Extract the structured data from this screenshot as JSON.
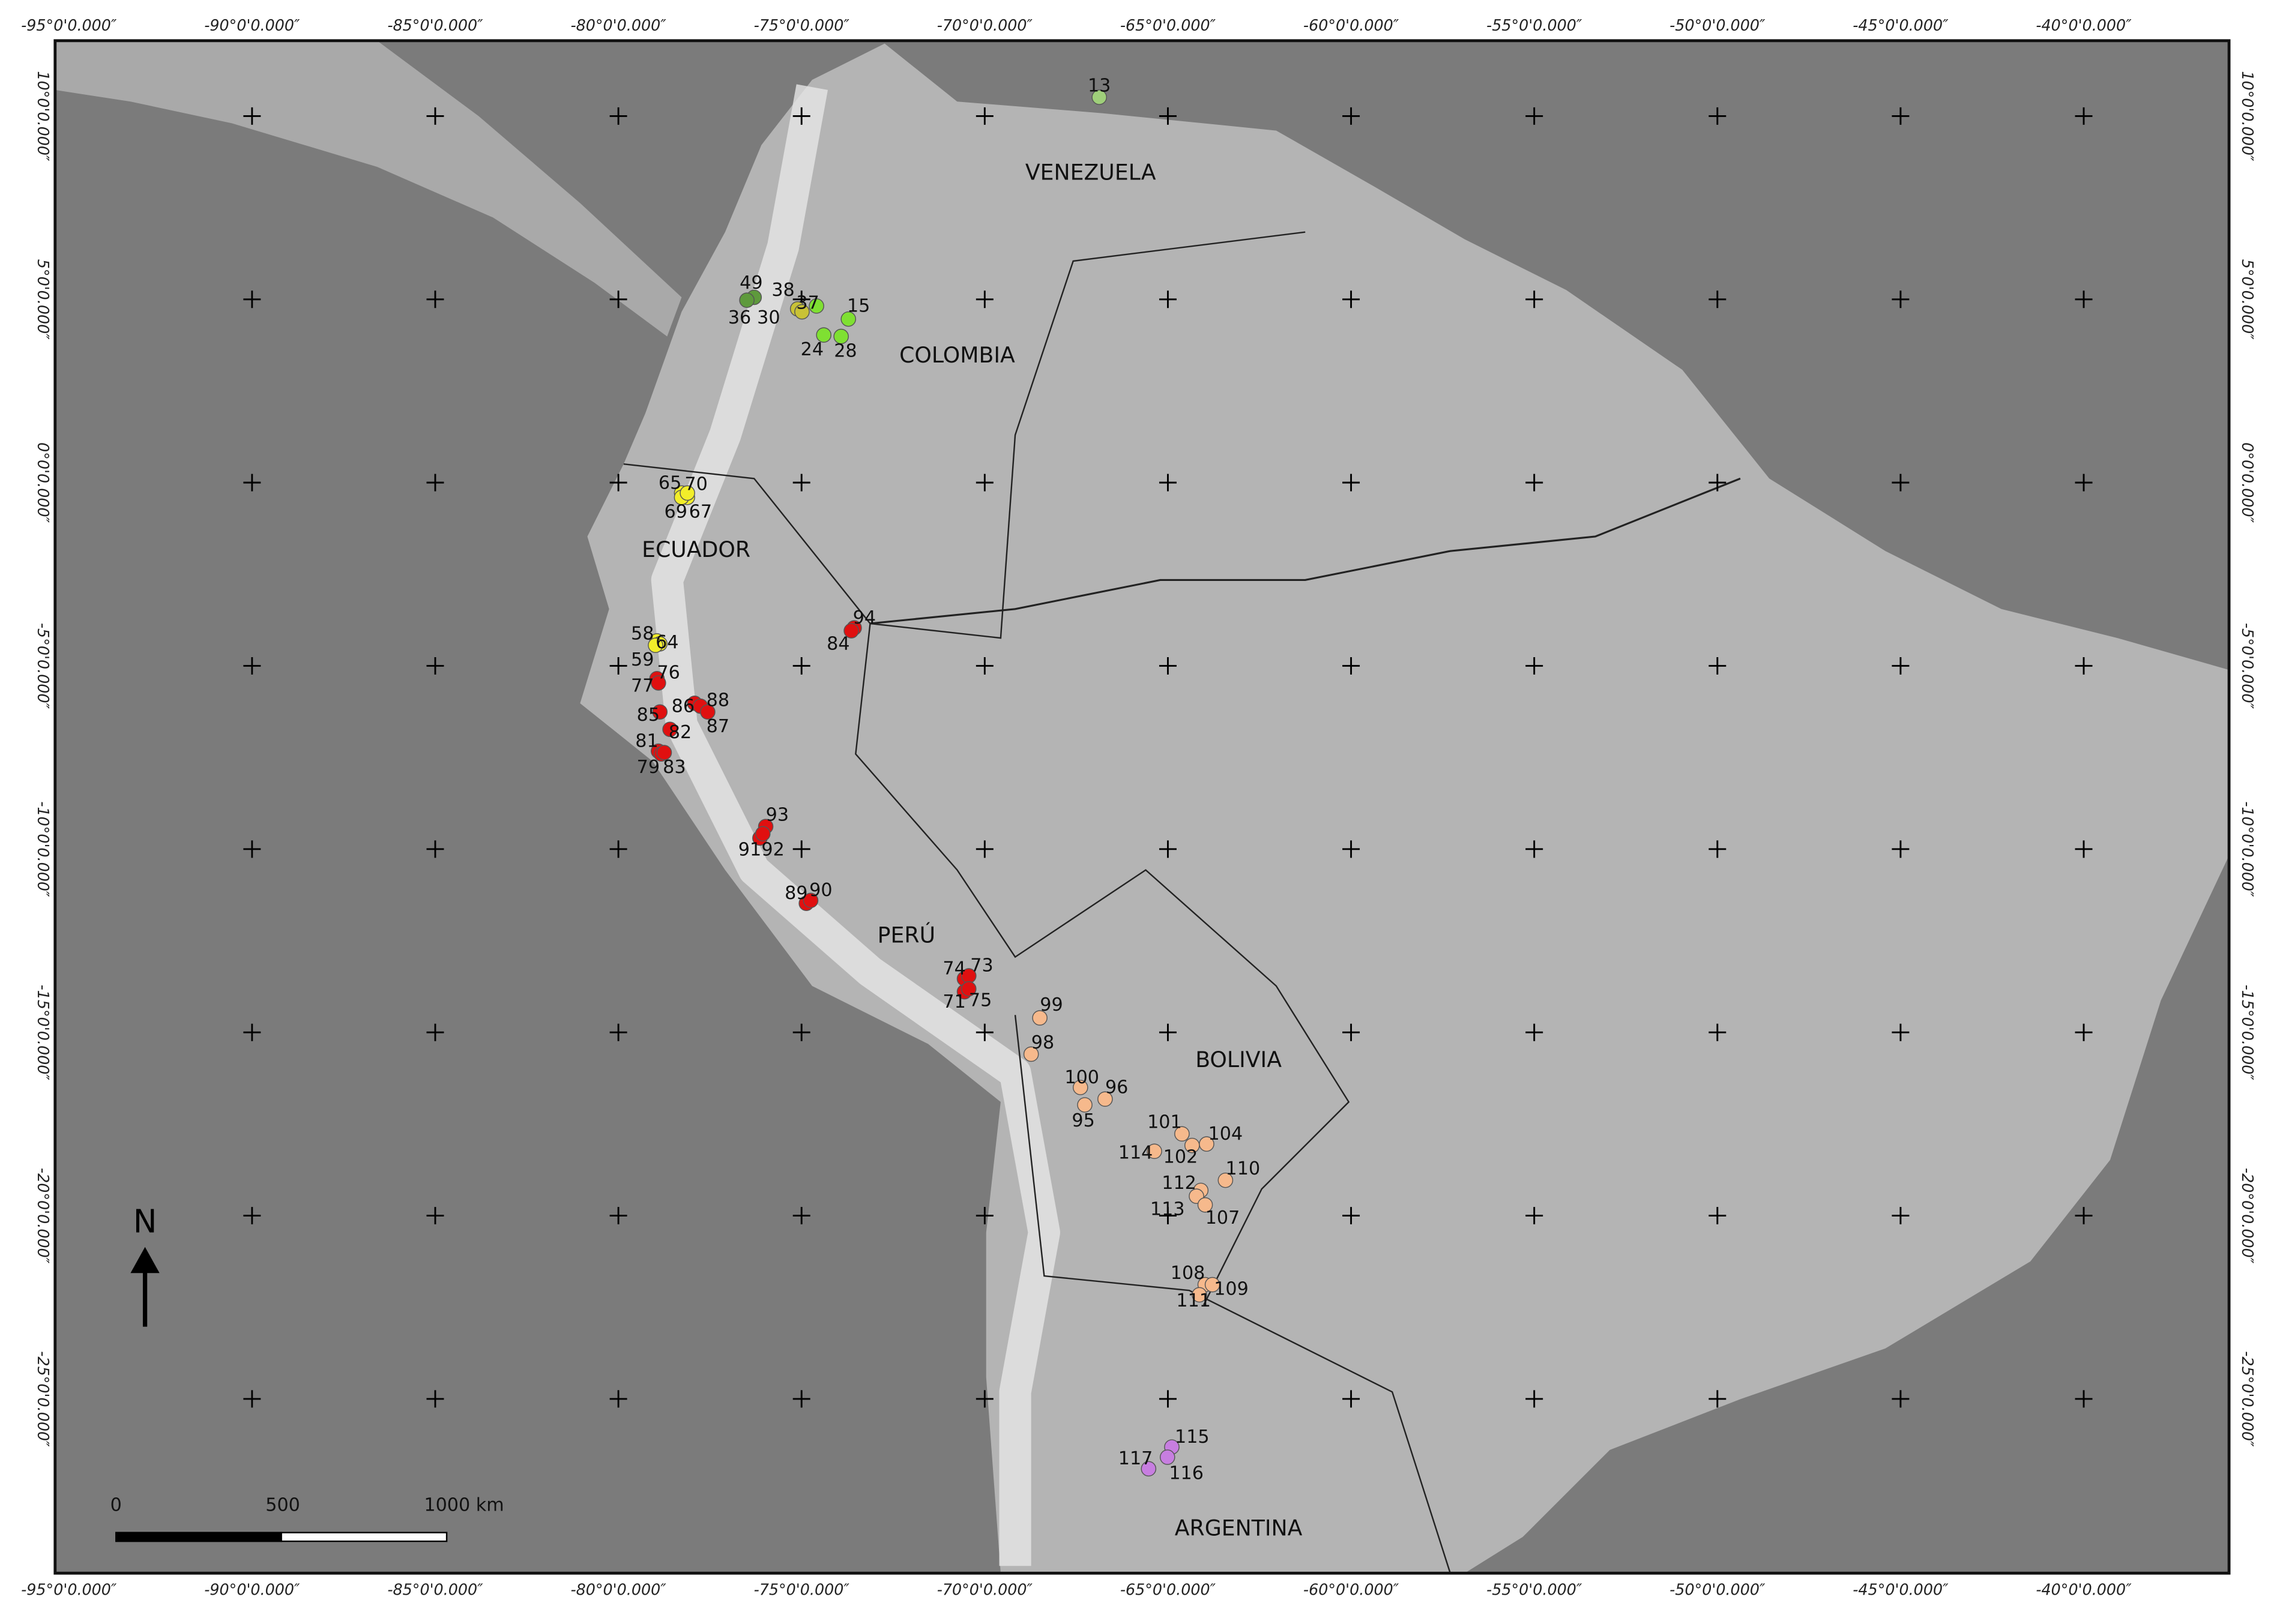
{
  "map": {
    "lon_labels": [
      "-95°0'0.000″",
      "-90°0'0.000″",
      "-85°0'0.000″",
      "-80°0'0.000″",
      "-75°0'0.000″",
      "-70°0'0.000″",
      "-65°0'0.000″",
      "-60°0'0.000″",
      "-55°0'0.000″",
      "-50°0'0.000″",
      "-45°0'0.000″",
      "-40°0'0.000″"
    ],
    "lat_labels": [
      "10°0'0.000″",
      "5°0'0.000″",
      "0°0'0.000″",
      "-5°0'0.000″",
      "-10°0'0.000″",
      "-15°0'0.000″",
      "-20°0'0.000″",
      "-25°0'0.000″"
    ],
    "countries": [
      "VENEZUELA",
      "COLOMBIA",
      "ECUADOR",
      "PERÚ",
      "BOLIVIA",
      "ARGENTINA"
    ],
    "north": "N",
    "scale_labels": [
      "0",
      "500",
      "1000 km"
    ],
    "points": [
      {
        "label": "13",
        "color": "#9fcf7a"
      },
      {
        "label": "49",
        "color": "#5e9a3c"
      },
      {
        "label": "38",
        "color": "#c9c236"
      },
      {
        "label": "36",
        "color": "#5e9a3c"
      },
      {
        "label": "30",
        "color": "#c9c236"
      },
      {
        "label": "37",
        "color": "#7fe032"
      },
      {
        "label": "15",
        "color": "#7fe032"
      },
      {
        "label": "24",
        "color": "#7fe032"
      },
      {
        "label": "28",
        "color": "#7fe032"
      },
      {
        "label": "65",
        "color": "#f2ee2a"
      },
      {
        "label": "70",
        "color": "#f2ee2a"
      },
      {
        "label": "69",
        "color": "#f2ee2a"
      },
      {
        "label": "67",
        "color": "#f2ee2a"
      },
      {
        "label": "58",
        "color": "#f2ee2a"
      },
      {
        "label": "64",
        "color": "#f2ee2a"
      },
      {
        "label": "59",
        "color": "#f2ee2a"
      },
      {
        "label": "76",
        "color": "#e01010"
      },
      {
        "label": "77",
        "color": "#e01010"
      },
      {
        "label": "94",
        "color": "#e01010"
      },
      {
        "label": "84",
        "color": "#e01010"
      },
      {
        "label": "86",
        "color": "#e01010"
      },
      {
        "label": "88",
        "color": "#e01010"
      },
      {
        "label": "87",
        "color": "#e01010"
      },
      {
        "label": "85",
        "color": "#e01010"
      },
      {
        "label": "82",
        "color": "#e01010"
      },
      {
        "label": "81",
        "color": "#e01010"
      },
      {
        "label": "79",
        "color": "#e01010"
      },
      {
        "label": "83",
        "color": "#e01010"
      },
      {
        "label": "93",
        "color": "#e01010"
      },
      {
        "label": "91",
        "color": "#e01010"
      },
      {
        "label": "92",
        "color": "#e01010"
      },
      {
        "label": "89",
        "color": "#e01010"
      },
      {
        "label": "90",
        "color": "#e01010"
      },
      {
        "label": "74",
        "color": "#e01010"
      },
      {
        "label": "73",
        "color": "#e01010"
      },
      {
        "label": "71",
        "color": "#e01010"
      },
      {
        "label": "75",
        "color": "#e01010"
      },
      {
        "label": "99",
        "color": "#f6b98c"
      },
      {
        "label": "98",
        "color": "#f6b98c"
      },
      {
        "label": "100",
        "color": "#f6b98c"
      },
      {
        "label": "96",
        "color": "#f6b98c"
      },
      {
        "label": "95",
        "color": "#f6b98c"
      },
      {
        "label": "101",
        "color": "#f6b98c"
      },
      {
        "label": "104",
        "color": "#f6b98c"
      },
      {
        "label": "102",
        "color": "#f6b98c"
      },
      {
        "label": "114",
        "color": "#f6b98c"
      },
      {
        "label": "110",
        "color": "#f6b98c"
      },
      {
        "label": "112",
        "color": "#f6b98c"
      },
      {
        "label": "113",
        "color": "#f6b98c"
      },
      {
        "label": "107",
        "color": "#f6b98c"
      },
      {
        "label": "108",
        "color": "#f6b98c"
      },
      {
        "label": "109",
        "color": "#f6b98c"
      },
      {
        "label": "111",
        "color": "#f6b98c"
      },
      {
        "label": "115",
        "color": "#c77ee0"
      },
      {
        "label": "117",
        "color": "#c77ee0"
      },
      {
        "label": "116",
        "color": "#c77ee0"
      }
    ]
  }
}
